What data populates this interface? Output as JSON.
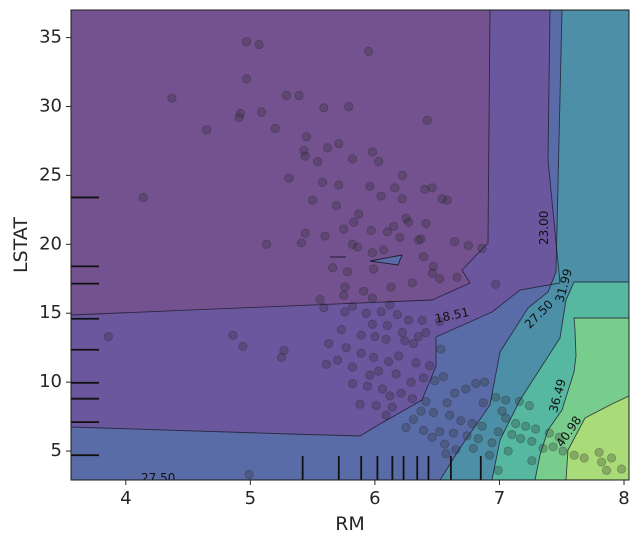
{
  "chart_data": {
    "type": "contour",
    "xlabel": "RM",
    "ylabel": "LSTAT",
    "xlim": [
      3.56,
      8.04
    ],
    "ylim": [
      2.9,
      37.0
    ],
    "xticks": [
      4,
      5,
      6,
      7,
      8
    ],
    "yticks": [
      5,
      10,
      15,
      20,
      25,
      30,
      35
    ],
    "grid": false,
    "colormap": "viridis",
    "levels": [
      {
        "value": "18.51",
        "color": "#6a579e"
      },
      {
        "value": "23.00",
        "color": "#5a6ca7"
      },
      {
        "value": "27.50",
        "color": "#4d8fa6"
      },
      {
        "value": "31.99",
        "color": "#56b8a0"
      },
      {
        "value": "36.49",
        "color": "#79cd8c"
      },
      {
        "value": "40.98",
        "color": "#a9dc79"
      }
    ],
    "base_color": "#74528f",
    "top_color": "#e1e64b",
    "contour_labels": [
      {
        "text": "18.51",
        "x": 6.62,
        "y": 14.8,
        "angle": -12
      },
      {
        "text": "23.00",
        "x": 7.36,
        "y": 21.2,
        "angle": -90
      },
      {
        "text": "27.50",
        "x": 7.32,
        "y": 14.9,
        "angle": -45
      },
      {
        "text": "31.99",
        "x": 7.52,
        "y": 17.0,
        "angle": -75
      },
      {
        "text": "36.49",
        "x": 7.47,
        "y": 9.0,
        "angle": -75
      },
      {
        "text": "40.98",
        "x": 7.56,
        "y": 6.4,
        "angle": -55
      },
      {
        "text": "27.50",
        "x": 4.26,
        "y": 3.0,
        "angle": 0
      }
    ],
    "rug_x": [
      5.42,
      5.71,
      5.89,
      6.02,
      6.14,
      6.23,
      6.34,
      6.43,
      6.61,
      6.85
    ],
    "rug_y": [
      4.7,
      7.1,
      8.8,
      9.95,
      12.35,
      14.6,
      17.15,
      18.4,
      23.4
    ],
    "points": [
      [
        4.97,
        34.7
      ],
      [
        5.07,
        34.5
      ],
      [
        5.95,
        34.0
      ],
      [
        4.97,
        32.0
      ],
      [
        4.37,
        30.6
      ],
      [
        5.29,
        30.8
      ],
      [
        5.39,
        30.8
      ],
      [
        4.92,
        29.5
      ],
      [
        4.91,
        29.2
      ],
      [
        5.09,
        29.6
      ],
      [
        5.59,
        29.9
      ],
      [
        5.79,
        30.0
      ],
      [
        6.42,
        29.0
      ],
      [
        4.65,
        28.3
      ],
      [
        5.2,
        28.4
      ],
      [
        5.45,
        27.8
      ],
      [
        5.71,
        27.3
      ],
      [
        5.62,
        27.0
      ],
      [
        5.98,
        26.7
      ],
      [
        5.43,
        26.8
      ],
      [
        5.44,
        26.4
      ],
      [
        5.54,
        26.0
      ],
      [
        5.82,
        26.2
      ],
      [
        6.03,
        26.0
      ],
      [
        6.22,
        25.0
      ],
      [
        4.14,
        23.4
      ],
      [
        5.31,
        24.8
      ],
      [
        5.58,
        24.5
      ],
      [
        5.71,
        24.3
      ],
      [
        5.96,
        24.2
      ],
      [
        6.16,
        24.1
      ],
      [
        6.4,
        24.0
      ],
      [
        6.46,
        24.1
      ],
      [
        6.05,
        23.5
      ],
      [
        6.22,
        23.3
      ],
      [
        6.58,
        23.2
      ],
      [
        6.54,
        23.3
      ],
      [
        5.5,
        23.2
      ],
      [
        5.69,
        22.8
      ],
      [
        5.87,
        22.2
      ],
      [
        5.83,
        21.6
      ],
      [
        6.15,
        21.3
      ],
      [
        6.27,
        21.6
      ],
      [
        6.41,
        21.5
      ],
      [
        5.97,
        21.0
      ],
      [
        6.1,
        20.9
      ],
      [
        6.25,
        21.9
      ],
      [
        5.75,
        21.1
      ],
      [
        5.44,
        20.8
      ],
      [
        5.6,
        20.6
      ],
      [
        5.13,
        20.0
      ],
      [
        5.41,
        20.1
      ],
      [
        5.82,
        20.0
      ],
      [
        5.86,
        19.8
      ],
      [
        5.98,
        19.4
      ],
      [
        6.07,
        19.6
      ],
      [
        6.2,
        20.5
      ],
      [
        6.35,
        20.3
      ],
      [
        6.37,
        20.4
      ],
      [
        6.64,
        20.2
      ],
      [
        6.75,
        19.9
      ],
      [
        6.86,
        19.7
      ],
      [
        6.39,
        19.1
      ],
      [
        6.47,
        18.4
      ],
      [
        6.46,
        17.9
      ],
      [
        6.52,
        17.5
      ],
      [
        6.66,
        17.6
      ],
      [
        6.97,
        17.1
      ],
      [
        5.66,
        18.3
      ],
      [
        5.78,
        18.0
      ],
      [
        5.99,
        18.2
      ],
      [
        6.3,
        17.2
      ],
      [
        6.13,
        16.9
      ],
      [
        5.56,
        16.0
      ],
      [
        5.75,
        16.3
      ],
      [
        5.76,
        16.9
      ],
      [
        5.91,
        16.6
      ],
      [
        5.98,
        16.1
      ],
      [
        6.12,
        15.6
      ],
      [
        5.59,
        15.4
      ],
      [
        5.76,
        15.1
      ],
      [
        5.82,
        15.5
      ],
      [
        5.93,
        15.0
      ],
      [
        6.05,
        15.1
      ],
      [
        6.18,
        14.9
      ],
      [
        6.27,
        14.5
      ],
      [
        6.38,
        14.5
      ],
      [
        6.52,
        14.4
      ],
      [
        5.98,
        14.2
      ],
      [
        6.1,
        14.1
      ],
      [
        5.73,
        13.8
      ],
      [
        5.89,
        13.4
      ],
      [
        6.0,
        13.3
      ],
      [
        6.09,
        13.1
      ],
      [
        6.22,
        13.6
      ],
      [
        6.35,
        13.3
      ],
      [
        6.41,
        13.6
      ],
      [
        6.24,
        13.0
      ],
      [
        6.31,
        12.8
      ],
      [
        6.53,
        12.4
      ],
      [
        5.63,
        12.8
      ],
      [
        5.77,
        12.5
      ],
      [
        5.89,
        12.1
      ],
      [
        5.99,
        11.8
      ],
      [
        6.11,
        11.5
      ],
      [
        6.19,
        11.9
      ],
      [
        6.33,
        11.4
      ],
      [
        6.44,
        11.2
      ],
      [
        5.61,
        11.3
      ],
      [
        5.7,
        11.6
      ],
      [
        5.82,
        11.1
      ],
      [
        5.96,
        10.5
      ],
      [
        6.03,
        10.8
      ],
      [
        6.17,
        10.6
      ],
      [
        6.29,
        10.0
      ],
      [
        6.39,
        10.3
      ],
      [
        6.48,
        10.1
      ],
      [
        6.55,
        10.4
      ],
      [
        5.82,
        9.9
      ],
      [
        5.94,
        9.7
      ],
      [
        6.06,
        9.5
      ],
      [
        6.21,
        9.2
      ],
      [
        6.12,
        9.0
      ],
      [
        6.3,
        8.8
      ],
      [
        6.41,
        8.6
      ],
      [
        6.58,
        8.5
      ],
      [
        5.88,
        8.4
      ],
      [
        6.01,
        8.3
      ],
      [
        6.14,
        8.2
      ],
      [
        6.37,
        7.9
      ],
      [
        6.47,
        7.8
      ],
      [
        6.6,
        7.6
      ],
      [
        6.69,
        7.2
      ],
      [
        6.78,
        7.0
      ],
      [
        6.86,
        6.8
      ],
      [
        6.25,
        6.7
      ],
      [
        6.39,
        6.5
      ],
      [
        6.52,
        6.4
      ],
      [
        6.63,
        6.3
      ],
      [
        6.74,
        6.1
      ],
      [
        6.83,
        5.9
      ],
      [
        6.94,
        5.6
      ],
      [
        6.99,
        6.4
      ],
      [
        7.1,
        6.2
      ],
      [
        7.17,
        5.9
      ],
      [
        7.26,
        5.7
      ],
      [
        7.05,
        7.4
      ],
      [
        7.13,
        7.0
      ],
      [
        7.21,
        6.8
      ],
      [
        7.29,
        6.6
      ],
      [
        7.4,
        6.3
      ],
      [
        7.48,
        6.0
      ],
      [
        6.87,
        8.5
      ],
      [
        6.97,
        8.9
      ],
      [
        7.05,
        8.7
      ],
      [
        7.16,
        8.6
      ],
      [
        7.24,
        8.3
      ],
      [
        6.64,
        9.2
      ],
      [
        6.73,
        9.5
      ],
      [
        6.81,
        9.9
      ],
      [
        6.88,
        10.0
      ],
      [
        7.02,
        7.9
      ],
      [
        7.35,
        5.2
      ],
      [
        7.43,
        5.3
      ],
      [
        7.51,
        5.0
      ],
      [
        7.6,
        4.7
      ],
      [
        7.68,
        4.5
      ],
      [
        7.82,
        4.2
      ],
      [
        7.9,
        4.5
      ],
      [
        7.98,
        3.7
      ],
      [
        7.86,
        3.6
      ],
      [
        7.8,
        4.9
      ],
      [
        6.92,
        4.7
      ],
      [
        7.07,
        5.0
      ],
      [
        6.46,
        6.0
      ],
      [
        6.31,
        7.3
      ],
      [
        6.09,
        7.6
      ],
      [
        5.27,
        12.3
      ],
      [
        5.25,
        11.8
      ],
      [
        4.86,
        13.4
      ],
      [
        4.94,
        12.6
      ],
      [
        3.86,
        13.3
      ],
      [
        4.99,
        3.3
      ],
      [
        6.79,
        5.2
      ],
      [
        6.65,
        5.1
      ],
      [
        6.56,
        5.5
      ],
      [
        6.57,
        4.8
      ],
      [
        7.26,
        4.3
      ],
      [
        6.99,
        3.6
      ]
    ]
  }
}
